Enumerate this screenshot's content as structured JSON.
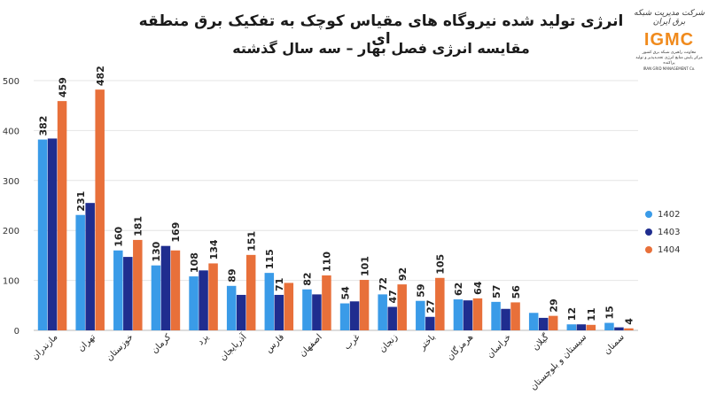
{
  "header": {
    "title": "انرژی تولید شده نیروگاه های مقیاس کوچک به تفکیک برق منطقه ای",
    "subtitle": "مقایسه انرژی فصل بهار – سه سال گذشته"
  },
  "logo": {
    "script": "شرکت مدیریت شبکه برق ایران",
    "main": "IGMC",
    "sub1": "معاونت راهبری شبکه برق کشور",
    "sub2": "مرکز پایش منابع انرژی تجدیدپذیر و تولید پراکنده",
    "en": "IRAN GRID MANAGEMENT Co."
  },
  "colors": {
    "1402": "#3a9be8",
    "1403": "#1f2d8f",
    "1404": "#e8703a"
  },
  "chart_data": {
    "type": "bar",
    "title": "انرژی تولید شده نیروگاه های مقیاس کوچک به تفکیک برق منطقه ای",
    "xlabel": "",
    "ylabel": "",
    "ylim": [
      0,
      500
    ],
    "yticks": [
      0,
      100,
      200,
      300,
      400,
      500
    ],
    "categories": [
      "مازندران",
      "تهران",
      "خوزستان",
      "کرمان",
      "یزد",
      "آذربایجان",
      "فارس",
      "اصفهان",
      "غرب",
      "زنجان",
      "باختر",
      "هرمزگان",
      "خراسان",
      "گیلان",
      "سیستان و بلوچستان",
      "سمنان"
    ],
    "series": [
      {
        "name": "1402",
        "values": [
          382,
          231,
          160,
          130,
          108,
          89,
          115,
          82,
          54,
          72,
          59,
          62,
          57,
          35,
          12,
          15
        ]
      },
      {
        "name": "1403",
        "values": [
          384,
          255,
          147,
          169,
          120,
          71,
          71,
          72,
          58,
          47,
          27,
          60,
          43,
          25,
          12,
          6
        ]
      },
      {
        "name": "1404",
        "values": [
          459,
          482,
          181,
          160,
          134,
          151,
          95,
          110,
          101,
          92,
          105,
          64,
          56,
          29,
          11,
          4
        ]
      }
    ],
    "data_labels": [
      {
        "category": "مازندران",
        "labels": [
          "382",
          "459"
        ]
      },
      {
        "category": "تهران",
        "labels": [
          "231",
          "482"
        ]
      },
      {
        "category": "خوزستان",
        "labels": [
          "160",
          "181"
        ]
      },
      {
        "category": "کرمان",
        "labels": [
          "130",
          "169"
        ]
      },
      {
        "category": "یزد",
        "labels": [
          "108",
          "134"
        ]
      },
      {
        "category": "آذربایجان",
        "labels": [
          "89",
          "151"
        ]
      },
      {
        "category": "فارس",
        "labels": [
          "115",
          "71"
        ]
      },
      {
        "category": "اصفهان",
        "labels": [
          "82",
          "110"
        ]
      },
      {
        "category": "غرب",
        "labels": [
          "54",
          "101"
        ]
      },
      {
        "category": "زنجان",
        "labels": [
          "72",
          "47",
          "92"
        ]
      },
      {
        "category": "باختر",
        "labels": [
          "59",
          "27",
          "105"
        ]
      },
      {
        "category": "هرمزگان",
        "labels": [
          "62",
          "64"
        ]
      },
      {
        "category": "خراسان",
        "labels": [
          "57",
          "56"
        ]
      },
      {
        "category": "گیلان",
        "labels": [
          "29"
        ]
      },
      {
        "category": "سیستان و بلوچستان",
        "labels": [
          "12",
          "11"
        ]
      },
      {
        "category": "سمنان",
        "labels": [
          "15",
          "4"
        ]
      }
    ],
    "legend": [
      "1402",
      "1403",
      "1404"
    ],
    "legend_position": "right"
  }
}
